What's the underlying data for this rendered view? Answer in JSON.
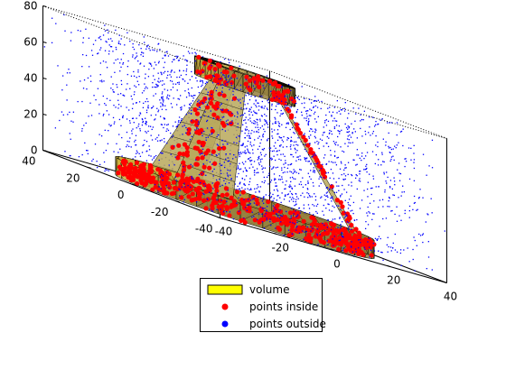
{
  "chart_data": {
    "type": "scatter",
    "title": "",
    "xlabel": "",
    "ylabel": "",
    "zlabel": "",
    "xlim": [
      -40,
      40
    ],
    "ylim": [
      -40,
      40
    ],
    "zlim": [
      0,
      80
    ],
    "grid": false,
    "legend_position": "bottom-center",
    "axes_ticks": {
      "z": [
        "0",
        "20",
        "40",
        "60",
        "80"
      ],
      "left_axis": [
        "40",
        "20",
        "0",
        "-20",
        "-40"
      ],
      "right_axis": [
        "-40",
        "-20",
        "0",
        "20",
        "40"
      ]
    },
    "series": [
      {
        "name": "volume",
        "kind": "mesh",
        "color": "#ffff00",
        "edge_color": "#000000"
      },
      {
        "name": "points inside",
        "kind": "scatter",
        "color": "#ff0000"
      },
      {
        "name": "points outside",
        "kind": "scatter",
        "color": "#0000ff"
      }
    ],
    "shape": {
      "base_ring": {
        "inner_radius": 28,
        "outer_radius": 36,
        "z": [
          0,
          10
        ]
      },
      "top_ring": {
        "inner_radius": 9,
        "outer_radius": 14,
        "z": [
          70,
          80
        ]
      },
      "struts": 3
    }
  }
}
